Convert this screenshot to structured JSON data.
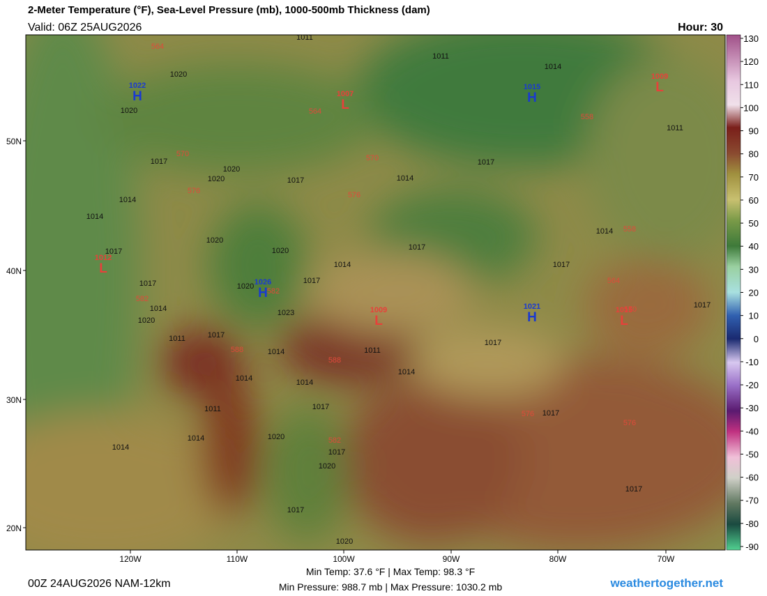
{
  "header": {
    "title": "2-Meter Temperature (°F), Sea-Level Pressure (mb), 1000-500mb Thickness (dam)",
    "valid": "Valid: 06Z 25AUG2026",
    "hour": "Hour: 30"
  },
  "map": {
    "lat_labels": [
      "50N",
      "40N",
      "30N",
      "20N"
    ],
    "lon_labels": [
      "120W",
      "110W",
      "100W",
      "90W",
      "80W",
      "70W"
    ],
    "pressure_centers": [
      {
        "letter": "H",
        "value": "1022"
      },
      {
        "letter": "H",
        "value": "1015"
      },
      {
        "letter": "L",
        "value": "1009"
      },
      {
        "letter": "L",
        "value": "1007"
      },
      {
        "letter": "L",
        "value": "1012"
      },
      {
        "letter": "H",
        "value": "1026"
      },
      {
        "letter": "L",
        "value": "1009"
      },
      {
        "letter": "H",
        "value": "1021"
      },
      {
        "letter": "L",
        "value": "1015"
      }
    ],
    "pressure_labels": [
      "1011",
      "1011",
      "1014",
      "1020",
      "1020",
      "1011",
      "1017",
      "1017",
      "1020",
      "1020",
      "1017",
      "1014",
      "1014",
      "1014",
      "1014",
      "1020",
      "1020",
      "1017",
      "1017",
      "1014",
      "1017",
      "1017",
      "1017",
      "1020",
      "1014",
      "1023",
      "1020",
      "1017",
      "1011",
      "1017",
      "1014",
      "1011",
      "1017",
      "1014",
      "1014",
      "1014",
      "1017",
      "1011",
      "1017",
      "1014",
      "1020",
      "1017",
      "1020",
      "1014",
      "1017",
      "1017",
      "1020"
    ],
    "thickness_labels": [
      "564",
      "564",
      "558",
      "570",
      "570",
      "576",
      "576",
      "558",
      "564",
      "570",
      "582",
      "582",
      "588",
      "588",
      "582",
      "576",
      "576"
    ]
  },
  "colorbar": {
    "ticks": [
      130,
      120,
      110,
      100,
      90,
      80,
      70,
      60,
      50,
      40,
      30,
      20,
      10,
      0,
      -10,
      -20,
      -30,
      -40,
      -50,
      -60,
      -70,
      -80,
      -90
    ]
  },
  "footer": {
    "run": "00Z 24AUG2026 NAM-12km",
    "stats": [
      "Min Temp: 37.6 °F | Max Temp:  98.3 °F",
      "Min Pressure: 988.7 mb | Max Pressure: 1030.2 mb"
    ],
    "site": "weathertogether.net"
  }
}
